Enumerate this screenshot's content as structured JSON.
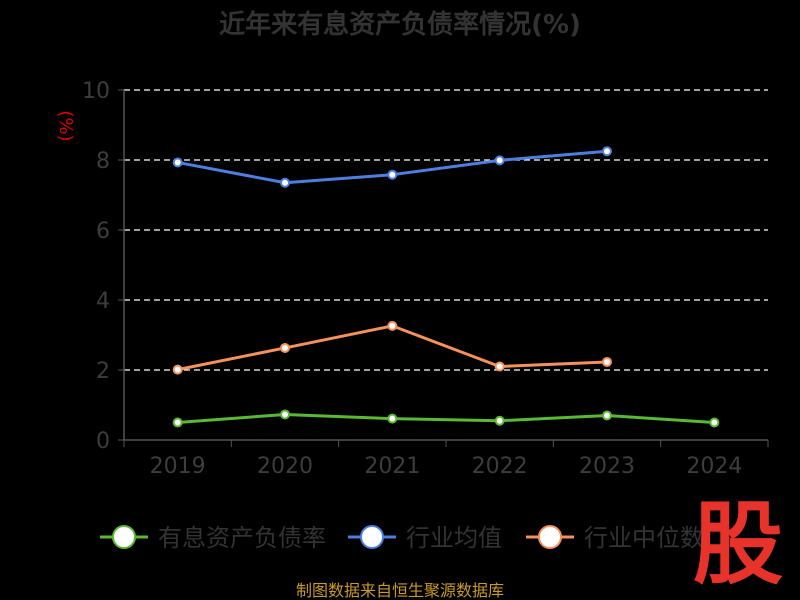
{
  "chart_data": {
    "type": "line",
    "title": "近年来有息资产负债率情况(%)",
    "ylabel": "(%)",
    "ylim": [
      0,
      10
    ],
    "yticks": [
      "0",
      "2",
      "4",
      "6",
      "8",
      "10"
    ],
    "grid": true,
    "legend_position": "bottom",
    "categories": [
      "2019",
      "2020",
      "2021",
      "2022",
      "2023",
      "2024"
    ],
    "series": [
      {
        "name": "有息资产负债率",
        "color": "#5ab832",
        "values": [
          0.5,
          0.73,
          0.61,
          0.55,
          0.7,
          0.5
        ]
      },
      {
        "name": "行业均值",
        "color": "#4e7fe0",
        "values": [
          7.93,
          7.35,
          7.58,
          7.99,
          8.25,
          null
        ]
      },
      {
        "name": "行业中位数",
        "color": "#f5915c",
        "values": [
          2.01,
          2.63,
          3.26,
          2.1,
          2.23,
          null
        ]
      }
    ]
  },
  "footer": "制图数据来自恒生聚源数据库",
  "watermark": "股",
  "colors": {
    "background": "#000000",
    "grid": "#ffffff",
    "axis": "#555555"
  }
}
